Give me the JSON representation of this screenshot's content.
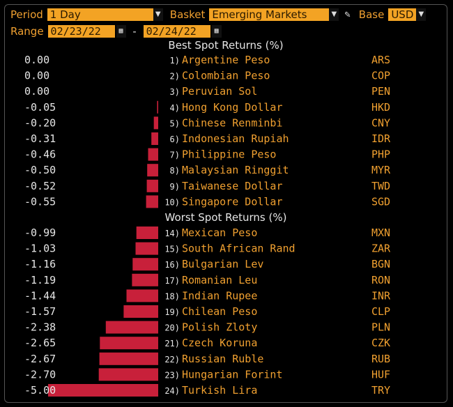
{
  "controls": {
    "period_label": "Period",
    "period_value": "1 Day",
    "basket_label": "Basket",
    "basket_value": "Emerging Markets",
    "base_label": "Base",
    "base_value": "USD",
    "range_label": "Range",
    "range_start": "02/23/22",
    "range_sep": "-",
    "range_end": "02/24/22"
  },
  "colors": {
    "bar": "#c8203a",
    "accent": "#f3a324",
    "label": "#f0a030",
    "value": "#e6e6e6"
  },
  "chart_data": [
    {
      "type": "bar",
      "title": "Best Spot Returns (%)",
      "rows": [
        {
          "rank": "1)",
          "name": "Argentine Peso",
          "code": "ARS",
          "value": 0.0,
          "label": "0.00"
        },
        {
          "rank": "2)",
          "name": "Colombian Peso",
          "code": "COP",
          "value": 0.0,
          "label": "0.00"
        },
        {
          "rank": "3)",
          "name": "Peruvian Sol",
          "code": "PEN",
          "value": 0.0,
          "label": "0.00"
        },
        {
          "rank": "4)",
          "name": "Hong Kong Dollar",
          "code": "HKD",
          "value": -0.05,
          "label": "-0.05"
        },
        {
          "rank": "5)",
          "name": "Chinese Renminbi",
          "code": "CNY",
          "value": -0.2,
          "label": "-0.20"
        },
        {
          "rank": "6)",
          "name": "Indonesian Rupiah",
          "code": "IDR",
          "value": -0.31,
          "label": "-0.31"
        },
        {
          "rank": "7)",
          "name": "Philippine Peso",
          "code": "PHP",
          "value": -0.46,
          "label": "-0.46"
        },
        {
          "rank": "8)",
          "name": "Malaysian Ringgit",
          "code": "MYR",
          "value": -0.5,
          "label": "-0.50"
        },
        {
          "rank": "9)",
          "name": "Taiwanese Dollar",
          "code": "TWD",
          "value": -0.52,
          "label": "-0.52"
        },
        {
          "rank": "10)",
          "name": "Singapore Dollar",
          "code": "SGD",
          "value": -0.55,
          "label": "-0.55"
        }
      ]
    },
    {
      "type": "bar",
      "title": "Worst Spot Returns (%)",
      "rows": [
        {
          "rank": "14)",
          "name": "Mexican Peso",
          "code": "MXN",
          "value": -0.99,
          "label": "-0.99"
        },
        {
          "rank": "15)",
          "name": "South African Rand",
          "code": "ZAR",
          "value": -1.03,
          "label": "-1.03"
        },
        {
          "rank": "16)",
          "name": "Bulgarian Lev",
          "code": "BGN",
          "value": -1.16,
          "label": "-1.16"
        },
        {
          "rank": "17)",
          "name": "Romanian Leu",
          "code": "RON",
          "value": -1.19,
          "label": "-1.19"
        },
        {
          "rank": "18)",
          "name": "Indian Rupee",
          "code": "INR",
          "value": -1.44,
          "label": "-1.44"
        },
        {
          "rank": "19)",
          "name": "Chilean Peso",
          "code": "CLP",
          "value": -1.57,
          "label": "-1.57"
        },
        {
          "rank": "20)",
          "name": "Polish Zloty",
          "code": "PLN",
          "value": -2.38,
          "label": "-2.38"
        },
        {
          "rank": "21)",
          "name": "Czech Koruna",
          "code": "CZK",
          "value": -2.65,
          "label": "-2.65"
        },
        {
          "rank": "22)",
          "name": "Russian Ruble",
          "code": "RUB",
          "value": -2.67,
          "label": "-2.67"
        },
        {
          "rank": "23)",
          "name": "Hungarian Forint",
          "code": "HUF",
          "value": -2.7,
          "label": "-2.70"
        },
        {
          "rank": "24)",
          "name": "Turkish Lira",
          "code": "TRY",
          "value": -5.0,
          "label": "-5.00"
        }
      ]
    }
  ]
}
